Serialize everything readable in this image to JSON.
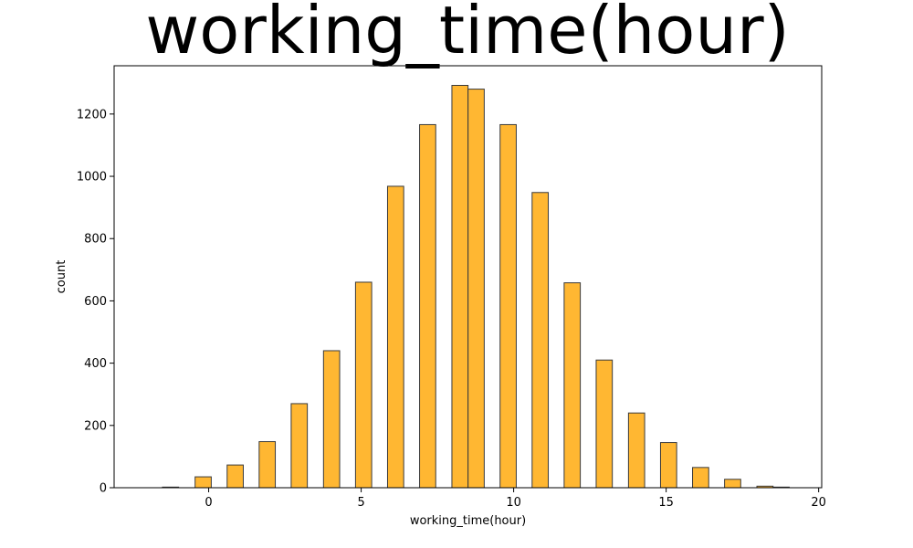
{
  "chart_data": {
    "type": "bar",
    "title": "working_time(hour)",
    "xlabel": "working_time(hour)",
    "ylabel": "count",
    "xlim": [
      -3.1,
      20.1
    ],
    "ylim": [
      0,
      1355
    ],
    "x_ticks": [
      "0",
      "5",
      "10",
      "15",
      "20"
    ],
    "y_ticks": [
      "0",
      "200",
      "400",
      "600",
      "800",
      "1000",
      "1200"
    ],
    "grid": false,
    "bar_color": "#ffb732",
    "edge_color": "#3a3a3a",
    "bins": [
      {
        "x": -1.25,
        "count": 2
      },
      {
        "x": -0.18,
        "count": 35
      },
      {
        "x": 0.87,
        "count": 73
      },
      {
        "x": 1.92,
        "count": 148
      },
      {
        "x": 2.97,
        "count": 270
      },
      {
        "x": 4.03,
        "count": 440
      },
      {
        "x": 5.08,
        "count": 660
      },
      {
        "x": 6.13,
        "count": 968
      },
      {
        "x": 7.18,
        "count": 1166
      },
      {
        "x": 8.24,
        "count": 1292
      },
      {
        "x": 8.77,
        "count": 1280
      },
      {
        "x": 9.82,
        "count": 1166
      },
      {
        "x": 10.87,
        "count": 948
      },
      {
        "x": 11.92,
        "count": 658
      },
      {
        "x": 12.97,
        "count": 410
      },
      {
        "x": 14.03,
        "count": 240
      },
      {
        "x": 15.08,
        "count": 145
      },
      {
        "x": 16.13,
        "count": 65
      },
      {
        "x": 17.18,
        "count": 27
      },
      {
        "x": 18.24,
        "count": 5
      },
      {
        "x": 18.77,
        "count": 2
      }
    ]
  }
}
